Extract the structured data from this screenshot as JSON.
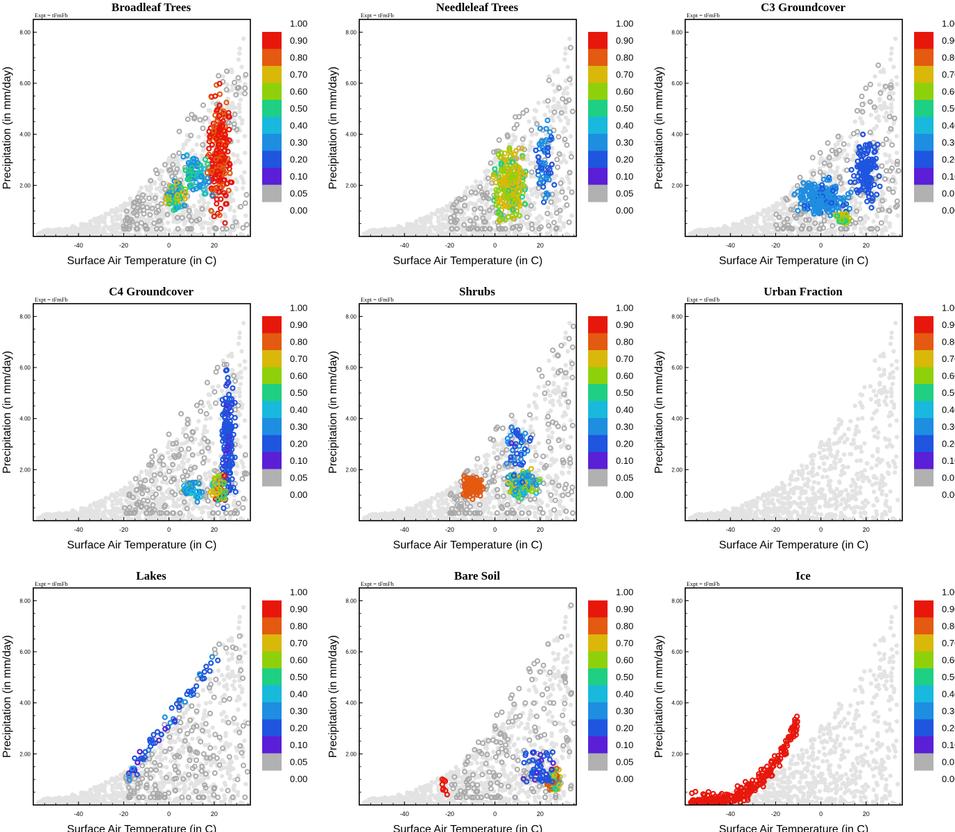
{
  "figure": {
    "expt_label": "Expt = tFmFb",
    "xlabel": "Surface Air Temperature (in C)",
    "ylabel": "Precipitation (in mm/day)"
  },
  "colorbar": {
    "labels": [
      "1.00",
      "0.90",
      "0.80",
      "0.70",
      "0.60",
      "0.50",
      "0.40",
      "0.30",
      "0.20",
      "0.10",
      "0.05",
      "0.00"
    ],
    "colors": [
      "#ffffff",
      "#e8170c",
      "#e35a10",
      "#d9b80a",
      "#8ed10b",
      "#1fcf83",
      "#18b9dc",
      "#1e8ee1",
      "#1f55df",
      "#5a1fd6",
      "#b1b1b1"
    ]
  },
  "chart_data": [
    {
      "type": "scatter",
      "title": "Broadleaf Trees",
      "xlim": [
        -60,
        36
      ],
      "ylim": [
        0,
        8.5
      ],
      "xticks": [
        -40,
        -20,
        0,
        20
      ],
      "yticks": [
        "2.00",
        "4.00",
        "6.00",
        "8.00"
      ],
      "highlight": "warm-high"
    },
    {
      "type": "scatter",
      "title": "Needleleaf Trees",
      "xlim": [
        -60,
        36
      ],
      "ylim": [
        0,
        8.5
      ],
      "xticks": [
        -40,
        -20,
        0,
        20
      ],
      "yticks": [
        "2.00",
        "4.00",
        "6.00",
        "8.00"
      ],
      "highlight": "mid-yellow"
    },
    {
      "type": "scatter",
      "title": "C3 Groundcover",
      "xlim": [
        -60,
        36
      ],
      "ylim": [
        0,
        8.5
      ],
      "xticks": [
        -40,
        -20,
        0,
        20
      ],
      "yticks": [
        "2.00",
        "4.00",
        "6.00",
        "8.00"
      ],
      "highlight": "blue-purple"
    },
    {
      "type": "scatter",
      "title": "C4 Groundcover",
      "xlim": [
        -60,
        36
      ],
      "ylim": [
        0,
        8.5
      ],
      "xticks": [
        -40,
        -20,
        0,
        20
      ],
      "yticks": [
        "2.00",
        "4.00",
        "6.00",
        "8.00"
      ],
      "highlight": "purple-warm"
    },
    {
      "type": "scatter",
      "title": "Shrubs",
      "xlim": [
        -60,
        36
      ],
      "ylim": [
        0,
        8.5
      ],
      "xticks": [
        -40,
        -20,
        0,
        20
      ],
      "yticks": [
        "2.00",
        "4.00",
        "6.00",
        "8.00"
      ],
      "highlight": "orange-mixed"
    },
    {
      "type": "scatter",
      "title": "Urban Fraction",
      "xlim": [
        -60,
        36
      ],
      "ylim": [
        0,
        8.5
      ],
      "xticks": [
        -40,
        -20,
        0,
        20
      ],
      "yticks": [
        "2.00",
        "4.00",
        "6.00",
        "8.00"
      ],
      "highlight": "none"
    },
    {
      "type": "scatter",
      "title": "Lakes",
      "xlim": [
        -60,
        36
      ],
      "ylim": [
        0,
        8.5
      ],
      "xticks": [
        -40,
        -20,
        0,
        20
      ],
      "yticks": [
        "2.00",
        "4.00",
        "6.00",
        "8.00"
      ],
      "highlight": "lakes"
    },
    {
      "type": "scatter",
      "title": "Bare Soil",
      "xlim": [
        -60,
        36
      ],
      "ylim": [
        0,
        8.5
      ],
      "xticks": [
        -40,
        -20,
        0,
        20
      ],
      "yticks": [
        "2.00",
        "4.00",
        "6.00",
        "8.00"
      ],
      "highlight": "bare"
    },
    {
      "type": "scatter",
      "title": "Ice",
      "xlim": [
        -60,
        36
      ],
      "ylim": [
        0,
        8.5
      ],
      "xticks": [
        -40,
        -20,
        0,
        20
      ],
      "yticks": [
        "2.00",
        "4.00",
        "6.00",
        "8.00"
      ],
      "highlight": "ice"
    }
  ]
}
